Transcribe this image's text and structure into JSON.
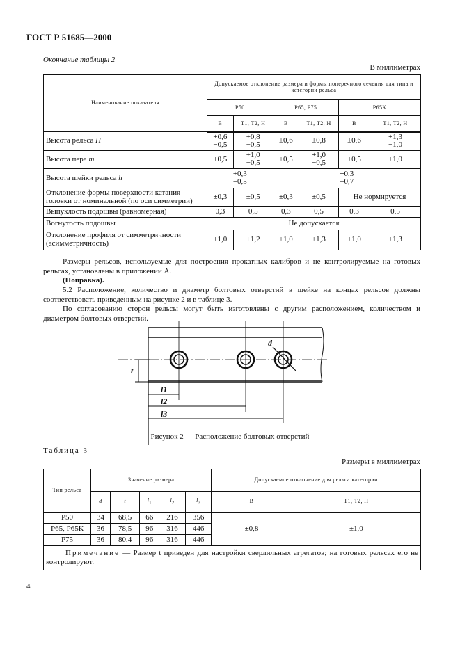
{
  "header": {
    "standard": "ГОСТ Р 51685—2000"
  },
  "table2": {
    "continuation_label": "Окончание таблицы 2",
    "units": "В миллиметрах",
    "col_indicator": "Наименование показателя",
    "col_group": "Допускаемое отклонение размера и формы поперечного сечения для типа и категории рельса",
    "rail_types": [
      "Р50",
      "Р65, Р75",
      "Р65К"
    ],
    "categories": [
      "В",
      "Т1, Т2, Н",
      "В",
      "Т1, Т2, Н",
      "В",
      "Т1, Т2, Н"
    ],
    "rows": [
      {
        "name": "Высота рельса",
        "symbol": "H",
        "cells": [
          "+0,6\n−0,5",
          "+0,8\n−0,5",
          "±0,6",
          "±0,8",
          "±0,6",
          "+1,3\n−1,0"
        ]
      },
      {
        "name": "Высота пера",
        "symbol": "m",
        "cells": [
          "±0,5",
          "+1,0\n−0,5",
          "±0,5",
          "+1,0\n−0,5",
          "±0,5",
          "±1,0"
        ]
      },
      {
        "name": "Высота шейки рельса",
        "symbol": "h",
        "merged": [
          {
            "span": 2,
            "text": "+0,3\n−0,5"
          },
          {
            "span": 4,
            "text": "+0,3\n−0,7"
          }
        ]
      },
      {
        "name": "Отклонение формы поверхности катания головки от номинальной (по оси симметрии)",
        "cells": [
          "±0,3",
          "±0,5",
          "±0,3",
          "±0,5"
        ],
        "merged_tail": {
          "span": 2,
          "text": "Не нормируется"
        }
      },
      {
        "name": "Выпуклость подошвы (равномерная)",
        "cells": [
          "0,3",
          "0,5",
          "0,3",
          "0,5",
          "0,3",
          "0,5"
        ]
      },
      {
        "name": "Вогнутость подошвы",
        "merged": [
          {
            "span": 6,
            "text": "Не допускается"
          }
        ]
      },
      {
        "name": "Отклонение профиля от симметричности (асимметричность)",
        "cells": [
          "±1,0",
          "±1,2",
          "±1,0",
          "±1,3",
          "±1,0",
          "±1,3"
        ]
      }
    ]
  },
  "body": {
    "p1": "Размеры рельсов, используемые для построения прокатных калибров и не контролируемые на готовых рельсах, установлены в приложении А.",
    "p1_amend": "(Поправка).",
    "p2": "5.2 Расположение, количество и диаметр болтовых отверстий в шейке на концах рельсов должны соответствовать приведенным на рисунке 2 и в таблице 3.",
    "p3": "По согласованию сторон рельсы могут быть изготовлены с другим расположением, количеством и диаметром болтовых отверстий."
  },
  "figure": {
    "labels": {
      "d": "d",
      "t": "t",
      "l1": "l1",
      "l2": "l2",
      "l3": "l3"
    },
    "caption": "Рисунок 2 — Расположение болтовых отверстий"
  },
  "table3": {
    "title": "Таблица 3",
    "units": "Размеры в миллиметрах",
    "col_type": "Тип рельса",
    "col_value": "Значение размера",
    "col_tol": "Допускаемое отклонение для рельса категории",
    "dims": [
      "d",
      "t",
      "l1",
      "l2",
      "l3"
    ],
    "cats": [
      "В",
      "Т1, Т2, Н"
    ],
    "rows": [
      {
        "type": "Р50",
        "values": [
          "34",
          "68,5",
          "66",
          "216",
          "356"
        ]
      },
      {
        "type": "Р65, Р65К",
        "values": [
          "36",
          "78,5",
          "96",
          "316",
          "446"
        ]
      },
      {
        "type": "Р75",
        "values": [
          "36",
          "80,4",
          "96",
          "316",
          "446"
        ]
      }
    ],
    "tolerances": [
      "±0,8",
      "±1,0"
    ],
    "note_label": "Примечание",
    "note_text": " — Размер t приведен для настройки сверлильных агрегатов; на готовых рельсах его не контролируют."
  },
  "page_number": "4"
}
